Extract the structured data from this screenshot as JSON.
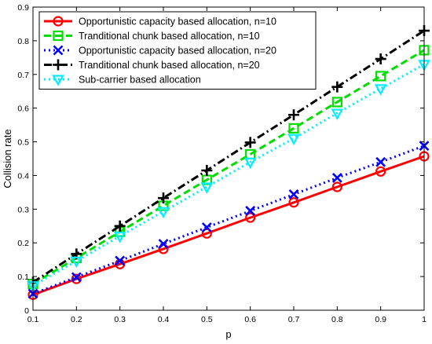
{
  "chart_data": {
    "type": "line",
    "xlabel": "p",
    "ylabel": "Collision rate",
    "xlim": [
      0.1,
      1
    ],
    "ylim": [
      0,
      0.9
    ],
    "x": [
      0.1,
      0.2,
      0.3,
      0.4,
      0.5,
      0.6,
      0.7,
      0.8,
      0.9,
      1
    ],
    "xticks": [
      "0.1",
      "0.2",
      "0.3",
      "0.4",
      "0.5",
      "0.6",
      "0.7",
      "0.8",
      "0.9",
      "1"
    ],
    "yticks": [
      "0",
      "0.1",
      "0.2",
      "0.3",
      "0.4",
      "0.5",
      "0.6",
      "0.7",
      "0.8",
      "0.9"
    ],
    "grid": false,
    "legend_position": "top-left",
    "series": [
      {
        "name": "Opportunistic capacity based allocation, n=10",
        "color": "#ff0000",
        "line_style": "solid",
        "marker": "circle",
        "values": [
          0.046,
          0.093,
          0.137,
          0.182,
          0.228,
          0.275,
          0.32,
          0.366,
          0.412,
          0.457
        ]
      },
      {
        "name": "Tranditional chunk based allocation, n=10",
        "color": "#00dd00",
        "line_style": "dashed",
        "marker": "square",
        "values": [
          0.078,
          0.155,
          0.233,
          0.31,
          0.387,
          0.463,
          0.54,
          0.618,
          0.695,
          0.772
        ]
      },
      {
        "name": "Opportunistic capacity based allocation, n=20",
        "color": "#0000ff",
        "line_style": "dotted",
        "marker": "x",
        "values": [
          0.049,
          0.098,
          0.147,
          0.197,
          0.246,
          0.295,
          0.344,
          0.393,
          0.44,
          0.488
        ]
      },
      {
        "name": "Tranditional chunk based allocation, n=20",
        "color": "#000000",
        "line_style": "dashdot",
        "marker": "plus",
        "values": [
          0.083,
          0.167,
          0.25,
          0.333,
          0.415,
          0.498,
          0.58,
          0.663,
          0.746,
          0.83
        ]
      },
      {
        "name": "Sub-carrier based allocation",
        "color": "#00eeff",
        "line_style": "dotted",
        "marker": "triangle-down",
        "values": [
          0.073,
          0.146,
          0.22,
          0.293,
          0.366,
          0.44,
          0.51,
          0.585,
          0.658,
          0.73
        ]
      }
    ]
  }
}
